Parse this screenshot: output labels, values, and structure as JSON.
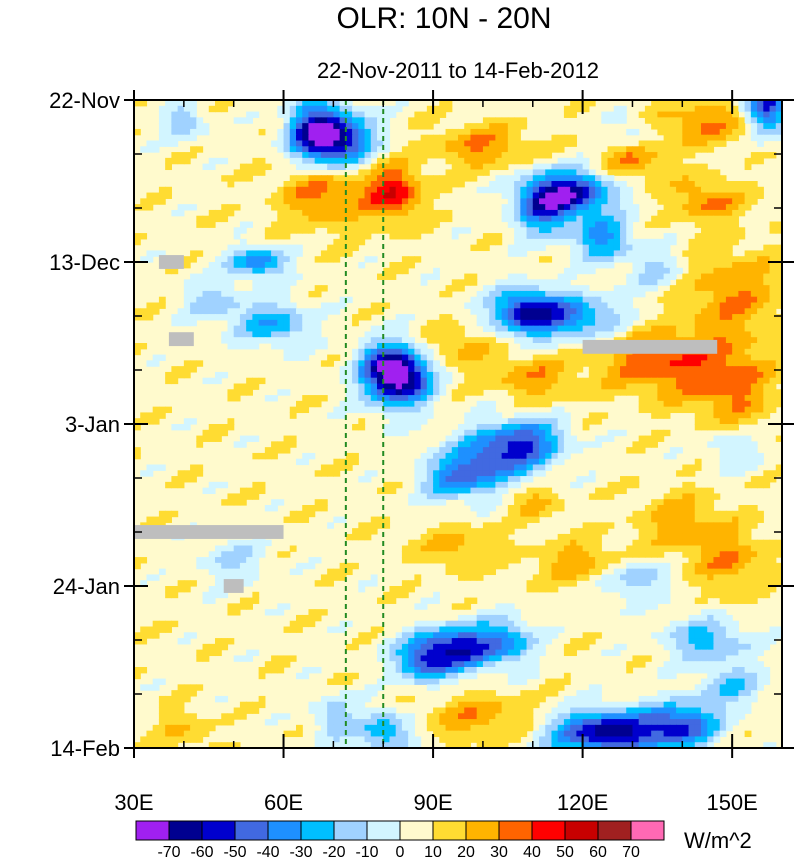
{
  "chart_data": {
    "type": "heatmap",
    "title": "OLR: 10N - 20N",
    "subtitle": "22-Nov-2011 to 14-Feb-2012",
    "x_axis": {
      "range": [
        30,
        160
      ],
      "ticks": [
        30,
        60,
        90,
        120,
        150
      ],
      "tick_labels": [
        "30E",
        "60E",
        "90E",
        "120E",
        "150E"
      ],
      "minor_tick_step": 10
    },
    "y_axis": {
      "orientation": "time increasing downward",
      "range_days": [
        0,
        84
      ],
      "ticks_days": [
        0,
        21,
        42,
        63,
        84
      ],
      "tick_labels": [
        "22-Nov",
        "13-Dec",
        "3-Jan",
        "24-Jan",
        "14-Feb"
      ],
      "minor_tick_step_days": 7
    },
    "reference_lines": [
      {
        "lon": 72.5,
        "style": "dashed",
        "color": "#228b22"
      },
      {
        "lon": 80,
        "style": "dashed",
        "color": "#228b22"
      }
    ],
    "colorbar": {
      "units": "W/m^2",
      "levels": [
        -70,
        -60,
        -50,
        -40,
        -30,
        -20,
        -10,
        0,
        10,
        20,
        30,
        40,
        50,
        60,
        70
      ],
      "level_labels": [
        "-70",
        "-60",
        "-50",
        "-40",
        "-30",
        "-20",
        "-10",
        "0",
        "10",
        "20",
        "30",
        "40",
        "50",
        "60",
        "70"
      ],
      "colors": [
        "#a020f0",
        "#000090",
        "#0000cd",
        "#4169e1",
        "#1e90ff",
        "#00bfff",
        "#a0d2ff",
        "#d2f5ff",
        "#fffacd",
        "#ffdc32",
        "#ffb400",
        "#ff6400",
        "#ff0000",
        "#c80000",
        "#a02020",
        "#ff69b4"
      ]
    },
    "features": [
      {
        "lon": 70,
        "day": 5,
        "value": -70,
        "note": "deep convection"
      },
      {
        "lon": 83,
        "day": 36,
        "value": -70,
        "note": "deep convection"
      },
      {
        "lon": 120,
        "day": 12,
        "value": -60
      },
      {
        "lon": 115,
        "day": 28,
        "value": -50
      },
      {
        "lon": 95,
        "day": 72,
        "value": -60
      },
      {
        "lon": 125,
        "day": 83,
        "value": -70
      },
      {
        "lon": 155,
        "day": 1,
        "value": -60
      },
      {
        "lon": 82,
        "day": 13,
        "value": 40,
        "note": "enhanced OLR"
      },
      {
        "lon": 135,
        "day": 35,
        "value": 30
      }
    ],
    "missing_data": [
      {
        "lon_range": [
          30,
          60
        ],
        "day": 56
      },
      {
        "lon_range": [
          120,
          147
        ],
        "day": 32
      },
      {
        "lon_range": [
          35,
          40
        ],
        "day": 21
      },
      {
        "lon_range": [
          37,
          42
        ],
        "day": 31
      },
      {
        "lon_range": [
          48,
          52
        ],
        "day": 63
      }
    ]
  }
}
